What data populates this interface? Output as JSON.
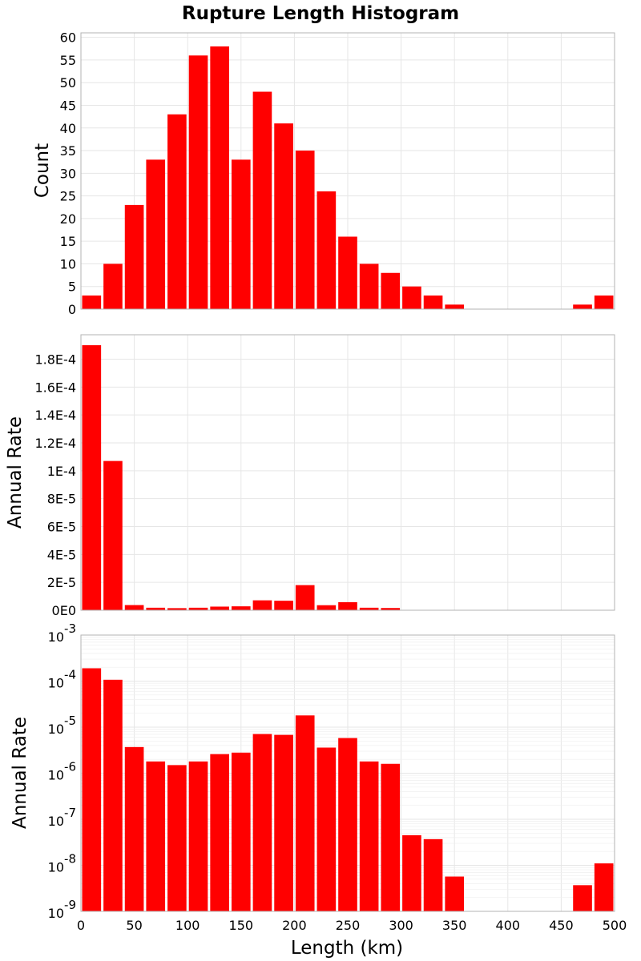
{
  "chart_data": {
    "title": "Rupture Length Histogram",
    "type": "bar",
    "bin_width": 20,
    "bin_centers": [
      10,
      30,
      50,
      70,
      90,
      110,
      130,
      150,
      170,
      190,
      210,
      230,
      250,
      270,
      290,
      310,
      330,
      350,
      370,
      390,
      410,
      430,
      450,
      470,
      490
    ],
    "xlabel": "Length (km)",
    "xlim": [
      0,
      500
    ],
    "xticks": [
      "0",
      "50",
      "100",
      "150",
      "200",
      "250",
      "300",
      "350",
      "400",
      "450",
      "500"
    ],
    "subplots": [
      {
        "id": "count",
        "type": "bar",
        "ylabel": "Count",
        "yscale": "linear",
        "ylim": [
          0,
          61
        ],
        "yticks": [
          {
            "v": 0,
            "label": "0"
          },
          {
            "v": 5,
            "label": "5"
          },
          {
            "v": 10,
            "label": "10"
          },
          {
            "v": 15,
            "label": "15"
          },
          {
            "v": 20,
            "label": "20"
          },
          {
            "v": 25,
            "label": "25"
          },
          {
            "v": 30,
            "label": "30"
          },
          {
            "v": 35,
            "label": "35"
          },
          {
            "v": 40,
            "label": "40"
          },
          {
            "v": 45,
            "label": "45"
          },
          {
            "v": 50,
            "label": "50"
          },
          {
            "v": 55,
            "label": "55"
          },
          {
            "v": 60,
            "label": "60"
          }
        ],
        "values": [
          3,
          10,
          23,
          33,
          43,
          56,
          58,
          33,
          48,
          41,
          35,
          26,
          16,
          10,
          8,
          5,
          3,
          1,
          0,
          0,
          0,
          0,
          0,
          1,
          3
        ]
      },
      {
        "id": "rate-linear",
        "type": "bar",
        "ylabel": "Annual Rate",
        "yscale": "linear",
        "ylim": [
          0,
          0.0001975
        ],
        "yticks": [
          {
            "v": 0,
            "label": "0E0"
          },
          {
            "v": 2e-05,
            "label": "2E-5"
          },
          {
            "v": 4e-05,
            "label": "4E-5"
          },
          {
            "v": 6e-05,
            "label": "6E-5"
          },
          {
            "v": 8e-05,
            "label": "8E-5"
          },
          {
            "v": 0.0001,
            "label": "1E-4"
          },
          {
            "v": 0.00012,
            "label": "1.2E-4"
          },
          {
            "v": 0.00014,
            "label": "1.4E-4"
          },
          {
            "v": 0.00016,
            "label": "1.6E-4"
          },
          {
            "v": 0.00018,
            "label": "1.8E-4"
          }
        ],
        "values": [
          0.00019,
          0.000107,
          3.7e-06,
          1.8e-06,
          1.5e-06,
          1.8e-06,
          2.6e-06,
          2.8e-06,
          7.1e-06,
          6.8e-06,
          1.8e-05,
          3.6e-06,
          5.8e-06,
          1.8e-06,
          1.6e-06,
          4.5e-08,
          3.7e-08,
          5.7e-09,
          0,
          0,
          0,
          0,
          0,
          3.7e-09,
          1.1e-08
        ]
      },
      {
        "id": "rate-log",
        "type": "bar",
        "ylabel": "Annual Rate",
        "yscale": "log",
        "ylim": [
          1e-09,
          0.001
        ],
        "yticks": [
          {
            "v": 1e-09,
            "base": "10",
            "exp": "-9"
          },
          {
            "v": 1e-08,
            "base": "10",
            "exp": "-8"
          },
          {
            "v": 1e-07,
            "base": "10",
            "exp": "-7"
          },
          {
            "v": 1e-06,
            "base": "10",
            "exp": "-6"
          },
          {
            "v": 1e-05,
            "base": "10",
            "exp": "-5"
          },
          {
            "v": 0.0001,
            "base": "10",
            "exp": "-4"
          },
          {
            "v": 0.001,
            "base": "10",
            "exp": "-3"
          }
        ],
        "values": [
          0.00019,
          0.000107,
          3.7e-06,
          1.8e-06,
          1.5e-06,
          1.8e-06,
          2.6e-06,
          2.8e-06,
          7.1e-06,
          6.8e-06,
          1.8e-05,
          3.6e-06,
          5.8e-06,
          1.8e-06,
          1.6e-06,
          4.5e-08,
          3.7e-08,
          5.7e-09,
          0,
          0,
          0,
          0,
          0,
          3.7e-09,
          1.1e-08
        ]
      }
    ]
  }
}
